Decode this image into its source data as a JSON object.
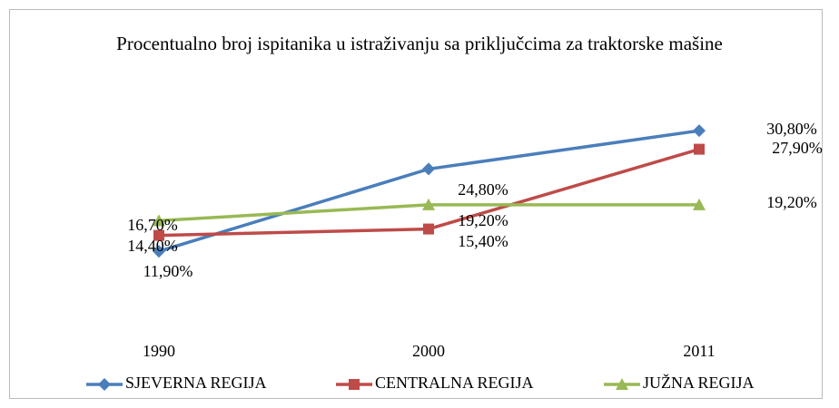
{
  "chart_data": {
    "type": "line",
    "title": "Procentualno broj ispitanika u istraživanju sa priključcima za traktorske mašine",
    "categories": [
      "1990",
      "2000",
      "2011"
    ],
    "ylim": [
      0,
      35
    ],
    "legend": "bottom",
    "series": [
      {
        "name": "SJEVERNA REGIJA",
        "color": "#4a7ebb",
        "marker": "diamond",
        "values": [
          11.9,
          24.8,
          30.8
        ],
        "value_labels": [
          "11,90%",
          "24,80%",
          "30,80%"
        ]
      },
      {
        "name": "CENTRALNA REGIJA",
        "color": "#be4b48",
        "marker": "square",
        "values": [
          14.4,
          15.4,
          27.9
        ],
        "value_labels": [
          "14,40%",
          "15,40%",
          "27,90%"
        ]
      },
      {
        "name": "JUŽNA REGIJA",
        "color": "#98b954",
        "marker": "triangle",
        "values": [
          16.7,
          19.2,
          19.2
        ],
        "value_labels": [
          "16,70%",
          "19,20%",
          "19,20%"
        ]
      }
    ]
  }
}
